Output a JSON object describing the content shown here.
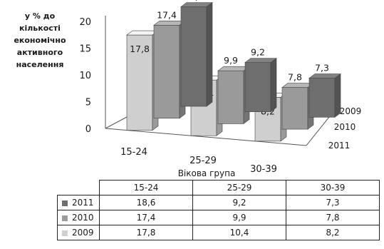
{
  "chart_data": {
    "type": "bar",
    "subtype": "3d-clustered-column",
    "ylabel": "у % до кількості економічно активного населення",
    "xlabel": "Вікова група",
    "categories": [
      "15-24",
      "25-29",
      "30-39"
    ],
    "yticks": [
      "0",
      "5",
      "10",
      "15",
      "20"
    ],
    "ylim": [
      0,
      20
    ],
    "series": [
      {
        "name": "2011",
        "values": [
          18.6,
          9.2,
          7.3
        ],
        "labels": [
          "18,6",
          "9,2",
          "7,3"
        ],
        "color": "#6e6e6e"
      },
      {
        "name": "2010",
        "values": [
          17.4,
          9.9,
          7.8
        ],
        "labels": [
          "17,4",
          "9,9",
          "7,8"
        ],
        "color": "#9a9a9a"
      },
      {
        "name": "2009",
        "values": [
          17.8,
          10.4,
          8.2
        ],
        "labels": [
          "17,8",
          "10,4",
          "8,2"
        ],
        "color": "#cfcfcf"
      }
    ],
    "depth_axis_labels": [
      "2009",
      "2010",
      "2011"
    ],
    "grid": false,
    "data_table": true
  }
}
